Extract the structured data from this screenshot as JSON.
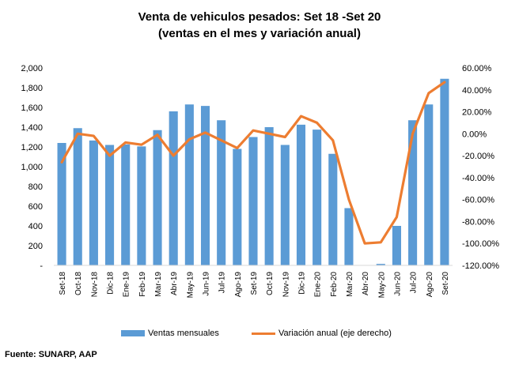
{
  "title_line1": "Venta de vehiculos pesados: Set 18 -Set 20",
  "title_line2": "(ventas en el mes y variación anual)",
  "source": "Fuente: SUNARP, AAP",
  "chart_data": {
    "type": "bar",
    "categories": [
      "Set-18",
      "Oct-18",
      "Nov-18",
      "Dic-18",
      "Ene-19",
      "Feb-19",
      "Mar-19",
      "Abr-19",
      "May-19",
      "Jun-19",
      "Jul-19",
      "Ago-19",
      "Set-19",
      "Oct-19",
      "Nov-19",
      "Dic-19",
      "Ene-20",
      "Feb-20",
      "Mar-20",
      "Abr-20",
      "May-20",
      "Jun-20",
      "Jul-20",
      "Ago-20",
      "Set-20"
    ],
    "series": [
      {
        "name": "Ventas mensuales",
        "type": "bar",
        "axis": "left",
        "color": "#5b9bd5",
        "values": [
          1240,
          1390,
          1265,
          1220,
          1225,
          1205,
          1370,
          1560,
          1630,
          1615,
          1470,
          1180,
          1300,
          1400,
          1220,
          1425,
          1375,
          1130,
          580,
          0,
          15,
          400,
          1470,
          1630,
          1890
        ]
      },
      {
        "name": "Variación anual (eje derecho)",
        "type": "line",
        "axis": "right",
        "color": "#ed7d31",
        "values": [
          -26,
          0,
          -2,
          -20,
          -8,
          -10,
          -1,
          -20,
          -5,
          1,
          -6,
          -13,
          3,
          0,
          -3,
          16,
          10,
          -6,
          -60,
          -100,
          -99,
          -76,
          0,
          37,
          47
        ]
      }
    ],
    "y_left": {
      "ylim": [
        0,
        2000
      ],
      "ticks": [
        "-",
        "200",
        "400",
        "600",
        "800",
        "1,000",
        "1,200",
        "1,400",
        "1,600",
        "1,800",
        "2,000"
      ]
    },
    "y_right": {
      "ylim": [
        -120,
        60
      ],
      "ticks": [
        "-120.00%",
        "-100.00%",
        "-80.00%",
        "-60.00%",
        "-40.00%",
        "-20.00%",
        "0.00%",
        "20.00%",
        "40.00%",
        "60.00%"
      ]
    },
    "grid": false,
    "legend": "bottom"
  }
}
